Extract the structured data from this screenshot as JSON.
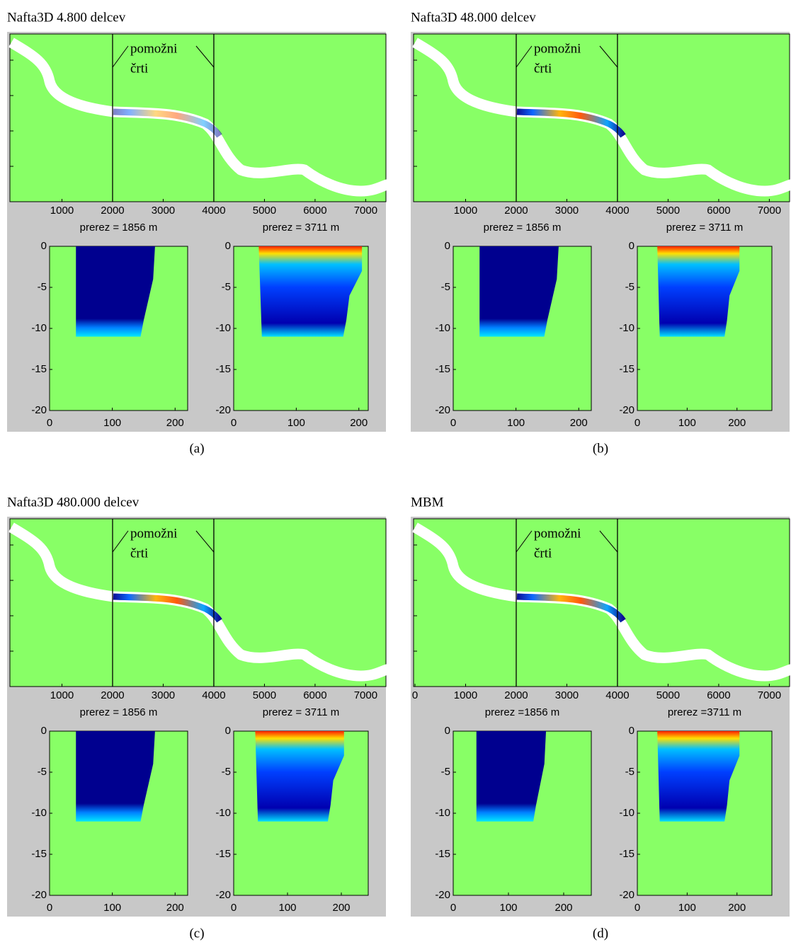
{
  "panels": [
    {
      "title": "Nafta3D 4.800 delcev",
      "caption": "(a)",
      "map": {
        "xlim": [
          0,
          7400
        ],
        "xticks": [
          1000,
          2000,
          3000,
          4000,
          5000,
          6000,
          7000
        ],
        "guides": [
          2000,
          4000
        ],
        "annotation": [
          "pomožni",
          "črti"
        ]
      },
      "sections": [
        {
          "title": "prerez = 1856 m",
          "xlim": [
            0,
            220
          ],
          "ylim": [
            -20,
            0
          ],
          "xticks": [
            0,
            100,
            200
          ],
          "yticks": [
            0,
            -5,
            -10,
            -15,
            -20
          ]
        },
        {
          "title": "prerez = 3711 m",
          "xlim": [
            0,
            215
          ],
          "ylim": [
            -20,
            0
          ],
          "xticks": [
            0,
            100,
            200
          ],
          "yticks": [
            0,
            -5,
            -10,
            -15,
            -20
          ]
        }
      ]
    },
    {
      "title": "Nafta3D 48.000 delcev",
      "caption": "(b)",
      "map": {
        "xlim": [
          0,
          7400
        ],
        "xticks": [
          1000,
          2000,
          3000,
          4000,
          5000,
          6000,
          7000
        ],
        "guides": [
          2000,
          4000
        ],
        "annotation": [
          "pomožni",
          "črti"
        ]
      },
      "sections": [
        {
          "title": "prerez = 1856 m",
          "xlim": [
            0,
            220
          ],
          "ylim": [
            -20,
            0
          ],
          "xticks": [
            0,
            100,
            200
          ],
          "yticks": [
            0,
            -5,
            -10,
            -15,
            -20
          ]
        },
        {
          "title": "prerez = 3711 m",
          "xlim": [
            0,
            270
          ],
          "ylim": [
            -20,
            0
          ],
          "xticks": [
            0,
            100,
            200
          ],
          "yticks": [
            0,
            -5,
            -10,
            -15,
            -20
          ]
        }
      ]
    },
    {
      "title": "Nafta3D 480.000 delcev",
      "caption": "(c)",
      "map": {
        "xlim": [
          0,
          7400
        ],
        "xticks": [
          1000,
          2000,
          3000,
          4000,
          5000,
          6000,
          7000
        ],
        "guides": [
          2000,
          4000
        ],
        "annotation": [
          "pomožni",
          "črti"
        ]
      },
      "sections": [
        {
          "title": "prerez = 1856 m",
          "xlim": [
            0,
            220
          ],
          "ylim": [
            -20,
            0
          ],
          "xticks": [
            0,
            100,
            200
          ],
          "yticks": [
            0,
            -5,
            -10,
            -15,
            -20
          ]
        },
        {
          "title": "prerez = 3711 m",
          "xlim": [
            0,
            250
          ],
          "ylim": [
            -20,
            0
          ],
          "xticks": [
            0,
            100,
            200
          ],
          "yticks": [
            0,
            -5,
            -10,
            -15,
            -20
          ]
        }
      ]
    },
    {
      "title": "MBM",
      "caption": "(d)",
      "map": {
        "xlim": [
          0,
          7400
        ],
        "xticks": [
          0,
          1000,
          2000,
          3000,
          4000,
          5000,
          6000,
          7000
        ],
        "guides": [
          2000,
          4000
        ],
        "annotation": [
          "pomožni",
          "črti"
        ]
      },
      "sections": [
        {
          "title": "prerez =1856 m",
          "xlim": [
            0,
            250
          ],
          "ylim": [
            -20,
            0
          ],
          "xticks": [
            0,
            100,
            200
          ],
          "yticks": [
            0,
            -5,
            -10,
            -15,
            -20
          ]
        },
        {
          "title": "prerez =3711 m",
          "xlim": [
            0,
            270
          ],
          "ylim": [
            -20,
            0
          ],
          "xticks": [
            0,
            100,
            200
          ],
          "yticks": [
            0,
            -5,
            -10,
            -15,
            -20
          ]
        }
      ]
    }
  ]
}
